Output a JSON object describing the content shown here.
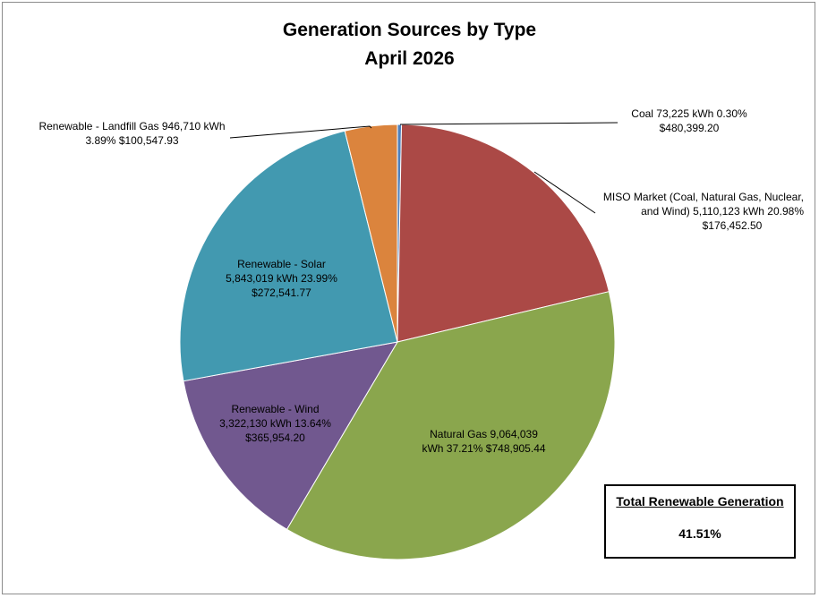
{
  "chart_data": {
    "type": "pie",
    "title_lines": [
      "Generation Sources by Type",
      "April 2026"
    ],
    "slices": [
      {
        "name": "Coal",
        "kwh": "73,225",
        "unit": "kWh",
        "percent": 0.3,
        "percent_label": "0.30%",
        "cost": "$480,399.20",
        "color": "#4f81bd",
        "lines": [
          "Coal  73,225   kWh  0.30%",
          "$480,399.20"
        ]
      },
      {
        "name": "MISO Market (Coal, Natural Gas, Nuclear, and Wind)",
        "kwh": "5,110,123",
        "unit": "kWh",
        "percent": 20.98,
        "percent_label": "20.98%",
        "cost": "$176,452.50",
        "color": "#ab4946",
        "lines": [
          "MISO Market (Coal, Natural Gas, Nuclear,",
          "and Wind)  5,110,123   kWh  20.98%",
          "$176,452.50"
        ]
      },
      {
        "name": "Natural Gas",
        "kwh": "9,064,039",
        "unit": "kWh",
        "percent": 37.21,
        "percent_label": "37.21%",
        "cost": "$748,905.44",
        "color": "#8aa64d",
        "lines": [
          "Natural Gas  9,064,039",
          "kWh  37.21%  $748,905.44"
        ]
      },
      {
        "name": "Renewable - Wind",
        "kwh": "3,322,130",
        "unit": "kWh",
        "percent": 13.64,
        "percent_label": "13.64%",
        "cost": "$365,954.20",
        "color": "#71588f",
        "lines": [
          "Renewable - Wind",
          "3,322,130   kWh  13.64%",
          "$365,954.20"
        ]
      },
      {
        "name": "Renewable - Solar",
        "kwh": "5,843,019",
        "unit": "kWh",
        "percent": 23.99,
        "percent_label": "23.99%",
        "cost": "$272,541.77",
        "color": "#4299b0",
        "lines": [
          "Renewable - Solar",
          "5,843,019   kWh  23.99%",
          "$272,541.77"
        ]
      },
      {
        "name": "Renewable - Landfill Gas",
        "kwh": "946,710",
        "unit": "kWh",
        "percent": 3.89,
        "percent_label": "3.89%",
        "cost": "$100,547.93",
        "color": "#db843d",
        "lines": [
          "Renewable - Landfill Gas  946,710   kWh",
          "3.89%  $100,547.93"
        ]
      }
    ]
  },
  "summary_box": {
    "title": "Total Renewable Generation",
    "value": "41.51%"
  }
}
